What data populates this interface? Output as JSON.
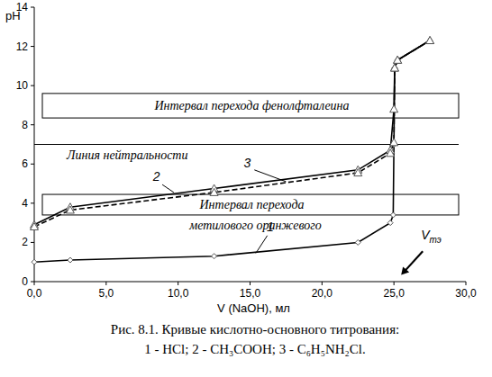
{
  "chart_data": {
    "type": "line",
    "title": "Рис. 8.1. Кривые кислотно-основного титрования:",
    "subtitle": "1 - HCl; 2 - CH₃COOH; 3 - C₆H₅NH₂Cl.",
    "x_label": "V (NaOH), мл",
    "y_label": "pH",
    "xlim": [
      0,
      30
    ],
    "ylim": [
      0,
      14
    ],
    "xticks": [
      {
        "value": 0,
        "label": "0,0"
      },
      {
        "value": 5,
        "label": "5,0"
      },
      {
        "value": 10,
        "label": "10,0"
      },
      {
        "value": 15,
        "label": "15,0"
      },
      {
        "value": 20,
        "label": "20,0"
      },
      {
        "value": 25,
        "label": "25,0"
      },
      {
        "value": 30,
        "label": "30,0"
      }
    ],
    "yticks": [
      0,
      2,
      4,
      6,
      8,
      10,
      12,
      14
    ],
    "grid": false,
    "series": [
      {
        "name": "1",
        "color": "#000000",
        "line_style": "solid",
        "marker": "diamond",
        "x": [
          0,
          2.5,
          12.5,
          22.5,
          24.75,
          24.95,
          25,
          25.05,
          25.25,
          27.5
        ],
        "values": [
          1.0,
          1.1,
          1.3,
          2.0,
          3.0,
          3.4,
          7.0,
          10.9,
          11.3,
          12.3
        ]
      },
      {
        "name": "2",
        "color": "#000000",
        "line_style": "solid",
        "marker": "triangle",
        "x": [
          0,
          2.5,
          12.5,
          22.5,
          24.75,
          25,
          25.05,
          25.25,
          27.5
        ],
        "values": [
          2.9,
          3.8,
          4.75,
          5.7,
          6.7,
          8.8,
          10.9,
          11.3,
          12.3
        ]
      },
      {
        "name": "3",
        "color": "#000000",
        "line_style": "dashed",
        "marker": "triangle",
        "x": [
          0,
          2.5,
          12.5,
          22.5,
          24.75,
          25,
          25.05,
          25.25,
          27.5
        ],
        "values": [
          2.8,
          3.65,
          4.55,
          5.55,
          6.55,
          7.1,
          10.9,
          11.3,
          12.3
        ]
      }
    ],
    "bands": [
      {
        "from": 8.35,
        "to": 9.6,
        "text": [
          "Интервал перехода фенолфталеина"
        ]
      },
      {
        "from": 3.4,
        "to": 4.45,
        "text": [
          "Интервал перехода",
          "метилового оранжевого"
        ]
      }
    ],
    "hlines": [
      {
        "value": 7,
        "text": "Линия нейтральности"
      }
    ],
    "equivalence": {
      "x": 25,
      "label": "V",
      "label_sub": "тэ"
    }
  }
}
